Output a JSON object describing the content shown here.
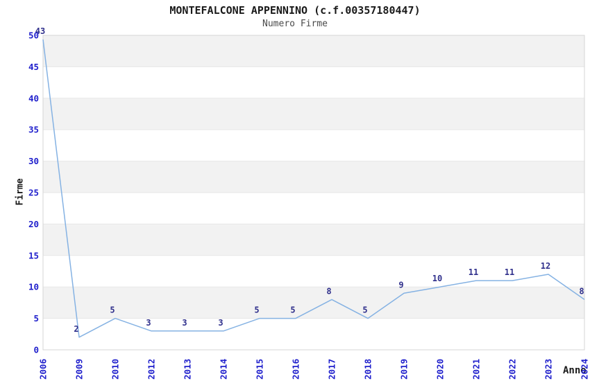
{
  "chart_data": {
    "type": "line",
    "title": "MONTEFALCONE APPENNINO (c.f.00357180447)",
    "subtitle": "Numero Firme",
    "xlabel": "Anno",
    "ylabel": "Firme",
    "categories": [
      "2006",
      "2009",
      "2010",
      "2012",
      "2013",
      "2014",
      "2015",
      "2016",
      "2017",
      "2018",
      "2019",
      "2020",
      "2021",
      "2022",
      "2023",
      "2024"
    ],
    "values": [
      43,
      2,
      5,
      3,
      3,
      3,
      5,
      5,
      8,
      5,
      9,
      10,
      11,
      11,
      12,
      8
    ],
    "point_labels": [
      "43",
      "2",
      "5",
      "3",
      "3",
      "3",
      "5",
      "5",
      "8",
      "5",
      "9",
      "10",
      "11",
      "11",
      "12",
      "8"
    ],
    "ylim": [
      0,
      50
    ],
    "ytick_step": 5,
    "yticks": [
      "0",
      "5",
      "10",
      "15",
      "20",
      "25",
      "30",
      "35",
      "40",
      "45",
      "50"
    ],
    "grid": "alternating-horizontal-bands",
    "legend": "none",
    "layout_hints": {
      "first_point_clipped_to_top": true,
      "x_axis_label_rotation_deg": -90
    },
    "colors": {
      "line": "#85b2e3",
      "tick_label": "#2020cc",
      "point_label": "#30308c",
      "band_gray": "#f2f2f2",
      "band_white": "#ffffff",
      "gridline": "#e7e7e7",
      "plot_border": "#d6d6d6",
      "title_text": "#1a1a1a",
      "subtitle_text": "#4a4a4a",
      "axis_label_text": "#1a1a1a",
      "background": "#ffffff"
    }
  }
}
